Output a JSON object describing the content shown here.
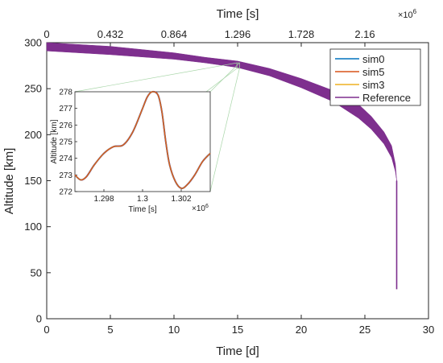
{
  "chart_data": {
    "type": "line",
    "main": {
      "xlabel": "Time [d]",
      "ylabel": "Altitude [km]",
      "xlim": [
        0,
        30
      ],
      "ylim": [
        0,
        300
      ],
      "xticks": [
        0,
        5,
        10,
        15,
        20,
        25,
        30
      ],
      "yticks": [
        0,
        50,
        100,
        150,
        200,
        250,
        300
      ],
      "top_axis": {
        "label": "Time [s]",
        "multiplier": "×10^6",
        "ticks": [
          0,
          0.432,
          0.864,
          1.296,
          1.728,
          2.16
        ],
        "tick_labels": [
          "0",
          "0.432",
          "0.864",
          "1.296",
          "1.728",
          "2.16"
        ]
      },
      "band_upper": [
        [
          0,
          300
        ],
        [
          5,
          296
        ],
        [
          10,
          289
        ],
        [
          12.5,
          284
        ],
        [
          15,
          280
        ],
        [
          17.5,
          272
        ],
        [
          20,
          261
        ],
        [
          22.5,
          248
        ],
        [
          24.5,
          233
        ],
        [
          25.5,
          220
        ],
        [
          26.5,
          203
        ],
        [
          27.1,
          188
        ],
        [
          27.4,
          168
        ],
        [
          27.5,
          150
        ]
      ],
      "band_lower": [
        [
          27.5,
          150
        ],
        [
          27.4,
          160
        ],
        [
          27.1,
          175
        ],
        [
          26.5,
          190
        ],
        [
          25.5,
          206
        ],
        [
          24.5,
          218
        ],
        [
          22.5,
          236
        ],
        [
          20,
          251
        ],
        [
          17.5,
          264
        ],
        [
          15,
          273
        ],
        [
          12.5,
          278
        ],
        [
          10,
          282
        ],
        [
          5,
          287
        ],
        [
          0,
          291
        ]
      ],
      "decay_tail": [
        [
          27.5,
          150
        ],
        [
          27.5,
          32
        ]
      ],
      "legend_position": "top-right",
      "grid": false
    },
    "inset": {
      "xlabel": "Time [s]",
      "ylabel": "Altitude [km]",
      "multiplier": "×10^6",
      "xlim": [
        1.2965,
        1.3035
      ],
      "ylim": [
        272,
        278
      ],
      "xticks": [
        1.298,
        1.3,
        1.302
      ],
      "xtick_labels": [
        "1.298",
        "1.3",
        "1.302"
      ],
      "yticks": [
        272,
        273,
        274,
        275,
        276,
        277,
        278
      ],
      "curve": [
        [
          1.2965,
          273.0
        ],
        [
          1.2968,
          272.7
        ],
        [
          1.2971,
          272.9
        ],
        [
          1.2975,
          273.6
        ],
        [
          1.298,
          274.3
        ],
        [
          1.2985,
          274.7
        ],
        [
          1.299,
          274.8
        ],
        [
          1.2995,
          275.6
        ],
        [
          1.3,
          277.0
        ],
        [
          1.30025,
          277.7
        ],
        [
          1.3005,
          278.0
        ],
        [
          1.3008,
          277.8
        ],
        [
          1.301,
          276.8
        ],
        [
          1.3012,
          275.0
        ],
        [
          1.3014,
          273.6
        ],
        [
          1.3017,
          272.6
        ],
        [
          1.302,
          272.2
        ],
        [
          1.3023,
          272.4
        ],
        [
          1.3027,
          273.0
        ],
        [
          1.3031,
          273.8
        ],
        [
          1.3035,
          274.3
        ]
      ],
      "grid": false
    },
    "series": [
      {
        "name": "sim0",
        "color": "#0072BD"
      },
      {
        "name": "sim5",
        "color": "#D95319"
      },
      {
        "name": "sim3",
        "color": "#EDB120"
      },
      {
        "name": "Reference",
        "color": "#7E2F8E"
      }
    ]
  }
}
